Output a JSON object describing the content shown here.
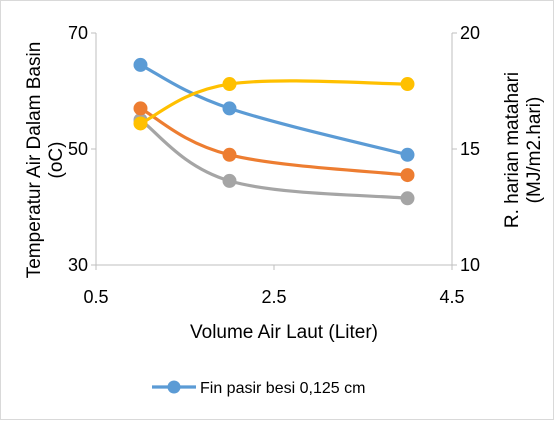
{
  "chart_data": {
    "type": "line",
    "xlabel": "Volume Air Laut (Liter)",
    "ylabel": [
      "Temperatur Air Dalam Basin",
      "(oC)"
    ],
    "y2label": [
      "R. harian matahari",
      "(MJ/m2.hari)"
    ],
    "xlim": [
      0.5,
      4.5
    ],
    "ylim": [
      30,
      70
    ],
    "y2lim": [
      10,
      20
    ],
    "x_ticks": [
      "0.5",
      "2.5",
      "4.5"
    ],
    "y_ticks": [
      "30",
      "50",
      "70"
    ],
    "y2_ticks": [
      "10",
      "15",
      "20"
    ],
    "x_tick_values": [
      0.5,
      2.5,
      4.5
    ],
    "y_tick_values": [
      30,
      50,
      70
    ],
    "y2_tick_values": [
      10,
      15,
      20
    ],
    "x": [
      1,
      2,
      4
    ],
    "series": [
      {
        "name": "Fin pasir besi 0,125 cm",
        "axis": "left",
        "color": "#5b9bd5",
        "values": [
          64.5,
          57.0,
          49.0
        ]
      },
      {
        "name": "",
        "axis": "left",
        "color": "#ed7d31",
        "values": [
          57.0,
          49.0,
          45.5
        ]
      },
      {
        "name": "",
        "axis": "left",
        "color": "#a5a5a5",
        "values": [
          55.0,
          44.5,
          41.5
        ]
      },
      {
        "name": "",
        "axis": "right",
        "color": "#ffc000",
        "values": [
          16.1,
          17.8,
          17.8
        ]
      }
    ],
    "grid": false,
    "legend_position": "bottom"
  }
}
